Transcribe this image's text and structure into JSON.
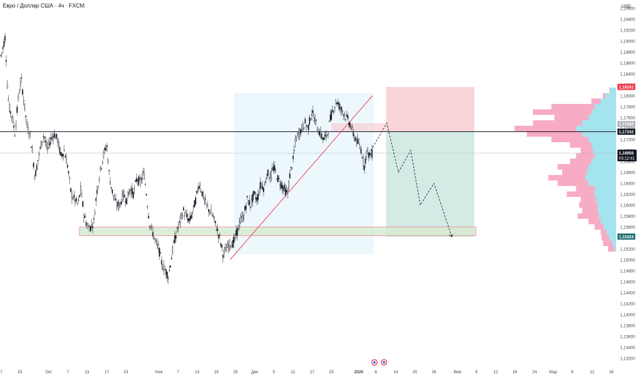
{
  "header": {
    "title": "Евро / Доллар США · 4ч · FXCM"
  },
  "currency": "USD",
  "chart_data": {
    "type": "candlestick",
    "symbol": "Евро / Доллар США",
    "timeframe": "4ч",
    "source": "FXCM",
    "ylim": [
      1.131,
      1.197
    ],
    "y_ticks": [
      "1,19600",
      "1,19400",
      "1,19200",
      "1,19000",
      "1,18800",
      "1,18600",
      "1,18400",
      "1,18200",
      "1,18000",
      "1,17800",
      "1,17600",
      "1,17400",
      "1,17200",
      "1,17000",
      "1,16800",
      "1,16600",
      "1,16400",
      "1,16200",
      "1,16000",
      "1,15800",
      "1,15600",
      "1,15400",
      "1,15200",
      "1,15000",
      "1,14800",
      "1,14600",
      "1,14400",
      "1,14200",
      "1,14000",
      "1,13800",
      "1,13600",
      "1,13400",
      "1,13200"
    ],
    "x_ticks": [
      "7",
      "23",
      "Окт",
      "7",
      "13",
      "17",
      "23",
      "Ноя",
      "7",
      "13",
      "19",
      "25",
      "Дек",
      "5",
      "11",
      "17",
      "23",
      "2026",
      "8",
      "14",
      "20",
      "26",
      "Фев",
      "6",
      "12",
      "18",
      "24",
      "Мар",
      "6",
      "12",
      "18"
    ],
    "price_path": [
      [
        0,
        1.187
      ],
      [
        3,
        1.188
      ],
      [
        8,
        1.191
      ],
      [
        10,
        1.183
      ],
      [
        13,
        1.178
      ],
      [
        18,
        1.176
      ],
      [
        22,
        1.173
      ],
      [
        27,
        1.18
      ],
      [
        31,
        1.183
      ],
      [
        36,
        1.178
      ],
      [
        40,
        1.174
      ],
      [
        44,
        1.173
      ],
      [
        48,
        1.169
      ],
      [
        51,
        1.165
      ],
      [
        55,
        1.168
      ],
      [
        60,
        1.171
      ],
      [
        64,
        1.173
      ],
      [
        69,
        1.17
      ],
      [
        74,
        1.172
      ],
      [
        79,
        1.173
      ],
      [
        84,
        1.172
      ],
      [
        89,
        1.169
      ],
      [
        94,
        1.17
      ],
      [
        99,
        1.167
      ],
      [
        104,
        1.162
      ],
      [
        109,
        1.161
      ],
      [
        114,
        1.16
      ],
      [
        118,
        1.163
      ],
      [
        123,
        1.158
      ],
      [
        128,
        1.156
      ],
      [
        133,
        1.156
      ],
      [
        137,
        1.157
      ],
      [
        141,
        1.162
      ],
      [
        146,
        1.166
      ],
      [
        151,
        1.169
      ],
      [
        156,
        1.171
      ],
      [
        160,
        1.165
      ],
      [
        165,
        1.162
      ],
      [
        170,
        1.16
      ],
      [
        175,
        1.16
      ],
      [
        180,
        1.162
      ],
      [
        185,
        1.161
      ],
      [
        190,
        1.163
      ],
      [
        195,
        1.162
      ],
      [
        200,
        1.165
      ],
      [
        205,
        1.164
      ],
      [
        210,
        1.166
      ],
      [
        214,
        1.162
      ],
      [
        218,
        1.157
      ],
      [
        223,
        1.155
      ],
      [
        228,
        1.153
      ],
      [
        232,
        1.152
      ],
      [
        237,
        1.149
      ],
      [
        242,
        1.148
      ],
      [
        246,
        1.147
      ],
      [
        250,
        1.15
      ],
      [
        254,
        1.153
      ],
      [
        258,
        1.155
      ],
      [
        263,
        1.157
      ],
      [
        268,
        1.159
      ],
      [
        272,
        1.158
      ],
      [
        277,
        1.157
      ],
      [
        282,
        1.159
      ],
      [
        286,
        1.161
      ],
      [
        291,
        1.164
      ],
      [
        296,
        1.162
      ],
      [
        301,
        1.16
      ],
      [
        306,
        1.159
      ],
      [
        311,
        1.158
      ],
      [
        316,
        1.156
      ],
      [
        321,
        1.154
      ],
      [
        326,
        1.151
      ],
      [
        331,
        1.152
      ],
      [
        336,
        1.153
      ],
      [
        341,
        1.153
      ],
      [
        346,
        1.155
      ],
      [
        351,
        1.157
      ],
      [
        356,
        1.158
      ],
      [
        361,
        1.161
      ],
      [
        366,
        1.16
      ],
      [
        371,
        1.162
      ],
      [
        376,
        1.161
      ],
      [
        381,
        1.164
      ],
      [
        386,
        1.163
      ],
      [
        390,
        1.166
      ],
      [
        395,
        1.165
      ],
      [
        400,
        1.167
      ],
      [
        405,
        1.165
      ],
      [
        410,
        1.164
      ],
      [
        415,
        1.163
      ],
      [
        420,
        1.162
      ],
      [
        424,
        1.166
      ],
      [
        428,
        1.168
      ],
      [
        432,
        1.172
      ],
      [
        436,
        1.173
      ],
      [
        441,
        1.174
      ],
      [
        446,
        1.175
      ],
      [
        450,
        1.174
      ],
      [
        455,
        1.177
      ],
      [
        459,
        1.176
      ],
      [
        464,
        1.174
      ],
      [
        468,
        1.173
      ],
      [
        473,
        1.172
      ],
      [
        478,
        1.173
      ],
      [
        483,
        1.176
      ],
      [
        488,
        1.178
      ],
      [
        492,
        1.179
      ],
      [
        496,
        1.178
      ],
      [
        501,
        1.177
      ],
      [
        506,
        1.176
      ],
      [
        511,
        1.175
      ],
      [
        516,
        1.173
      ],
      [
        520,
        1.172
      ],
      [
        524,
        1.171
      ],
      [
        528,
        1.17
      ],
      [
        532,
        1.167
      ],
      [
        536,
        1.17
      ],
      [
        540,
        1.169
      ],
      [
        544,
        1.1695
      ]
    ],
    "current_price": "1,16950",
    "countdown": "03:12:41",
    "price_labels": [
      {
        "price": 1.18161,
        "text": "1,18161",
        "color": "#f23645"
      },
      {
        "price": 1.17482,
        "text": "1,17482",
        "color": "#b2b5be"
      },
      {
        "price": 1.17342,
        "text": "1,17342",
        "color": "#131722"
      },
      {
        "price": 1.15424,
        "text": "1,15424",
        "color": "#1e6b6b"
      }
    ],
    "horizontal_lines": [
      {
        "price": 1.17342,
        "color": "#131722"
      },
      {
        "price": 1.1695,
        "color": "#b2b5be"
      }
    ],
    "zones": {
      "support_zone": {
        "top": 1.156,
        "bottom": 1.1544,
        "color": "#d8ecd2"
      },
      "resistance_box": {
        "top": 1.175,
        "bottom": 1.1734,
        "color": "#f8c8cf"
      },
      "range_box": {
        "top": 1.1805,
        "bottom": 1.151,
        "color": "#e6f5fb"
      },
      "stop_box": {
        "top": 1.1816,
        "bottom": 1.1734,
        "color": "#f8ccd2"
      },
      "target_box": {
        "top": 1.1734,
        "bottom": 1.1542,
        "color": "#cce8e0"
      }
    },
    "trendline": {
      "from": [
        336,
        1.15
      ],
      "to": [
        544,
        1.18
      ],
      "color": "#f0486a"
    },
    "projection_path": [
      [
        542,
        1.17
      ],
      [
        565,
        1.175
      ],
      [
        582,
        1.166
      ],
      [
        600,
        1.17
      ],
      [
        614,
        1.16
      ],
      [
        634,
        1.164
      ],
      [
        660,
        1.1542
      ]
    ],
    "volume_profile": {
      "price_range": [
        1.152,
        1.181
      ],
      "levels": [
        {
          "p": 1.181,
          "buy": 20,
          "sell": 2
        },
        {
          "p": 1.18,
          "buy": 35,
          "sell": 8
        },
        {
          "p": 1.179,
          "buy": 50,
          "sell": 30
        },
        {
          "p": 1.178,
          "buy": 70,
          "sell": 140
        },
        {
          "p": 1.177,
          "buy": 80,
          "sell": 190
        },
        {
          "p": 1.176,
          "buy": 90,
          "sell": 110
        },
        {
          "p": 1.175,
          "buy": 110,
          "sell": 160
        },
        {
          "p": 1.174,
          "buy": 130,
          "sell": 200
        },
        {
          "p": 1.173,
          "buy": 110,
          "sell": 180
        },
        {
          "p": 1.172,
          "buy": 90,
          "sell": 120
        },
        {
          "p": 1.171,
          "buy": 80,
          "sell": 70
        },
        {
          "p": 1.17,
          "buy": 75,
          "sell": 40
        },
        {
          "p": 1.169,
          "buy": 70,
          "sell": 60
        },
        {
          "p": 1.168,
          "buy": 80,
          "sell": 70
        },
        {
          "p": 1.167,
          "buy": 90,
          "sell": 100
        },
        {
          "p": 1.166,
          "buy": 95,
          "sell": 80
        },
        {
          "p": 1.165,
          "buy": 100,
          "sell": 120
        },
        {
          "p": 1.164,
          "buy": 90,
          "sell": 100
        },
        {
          "p": 1.163,
          "buy": 70,
          "sell": 60
        },
        {
          "p": 1.162,
          "buy": 70,
          "sell": 90
        },
        {
          "p": 1.161,
          "buy": 65,
          "sell": 50
        },
        {
          "p": 1.16,
          "buy": 60,
          "sell": 60
        },
        {
          "p": 1.159,
          "buy": 60,
          "sell": 50
        },
        {
          "p": 1.158,
          "buy": 55,
          "sell": 70
        },
        {
          "p": 1.157,
          "buy": 50,
          "sell": 40
        },
        {
          "p": 1.156,
          "buy": 40,
          "sell": 30
        },
        {
          "p": 1.155,
          "buy": 30,
          "sell": 20
        },
        {
          "p": 1.154,
          "buy": 22,
          "sell": 25
        },
        {
          "p": 1.153,
          "buy": 12,
          "sell": 30
        },
        {
          "p": 1.152,
          "buy": 6,
          "sell": 20
        }
      ]
    }
  }
}
